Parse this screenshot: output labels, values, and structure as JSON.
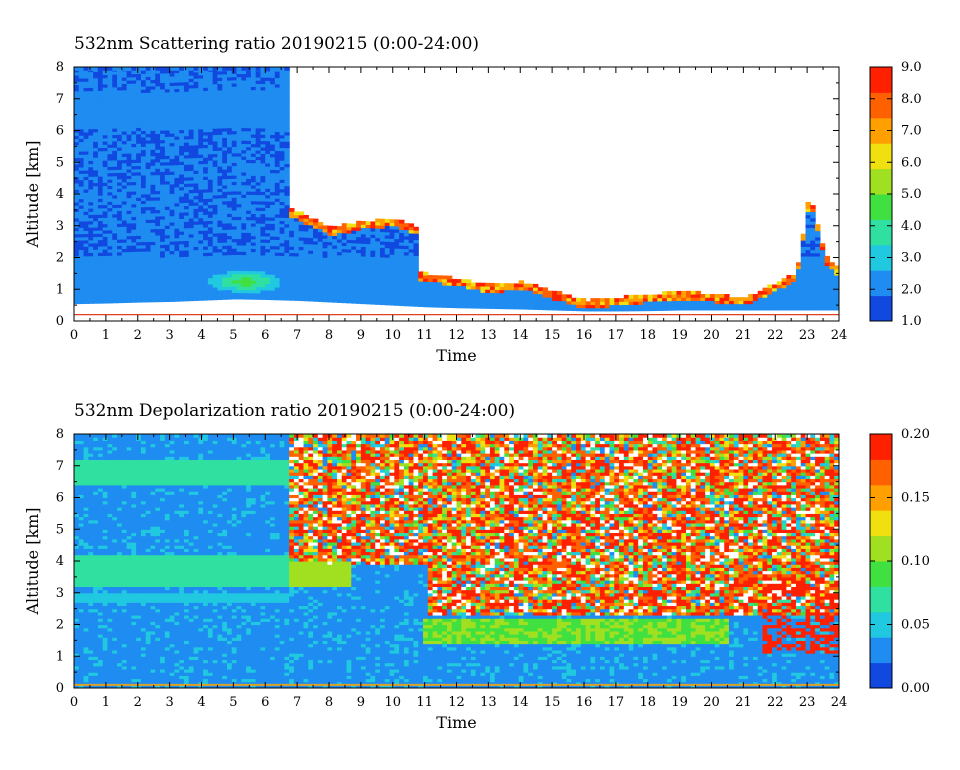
{
  "chart_data": [
    {
      "type": "heatmap",
      "title": "532nm Scattering ratio  20190215 (0:00-24:00)",
      "xlabel": "Time",
      "ylabel": "Altitude [km]",
      "xlim": [
        0,
        24
      ],
      "ylim": [
        0,
        8
      ],
      "x_ticks": [
        "0",
        "1",
        "2",
        "3",
        "4",
        "5",
        "6",
        "7",
        "8",
        "9",
        "10",
        "11",
        "12",
        "13",
        "14",
        "15",
        "16",
        "17",
        "18",
        "19",
        "20",
        "21",
        "22",
        "23",
        "24"
      ],
      "y_ticks": [
        "0",
        "1",
        "2",
        "3",
        "4",
        "5",
        "6",
        "7",
        "8"
      ],
      "colorbar": {
        "range": [
          1.0,
          9.0
        ],
        "ticks": [
          "1.0",
          "2.0",
          "3.0",
          "4.0",
          "5.0",
          "6.0",
          "7.0",
          "8.0",
          "9.0"
        ],
        "colors": [
          "#1048e0",
          "#1e8cf0",
          "#20c8e0",
          "#30e0a0",
          "#40e040",
          "#a0e020",
          "#f0e010",
          "#ffa000",
          "#ff6000",
          "#ff2000"
        ]
      },
      "features": {
        "cloud_base_km": [
          [
            0,
            0.55
          ],
          [
            1,
            0.57
          ],
          [
            2,
            0.6
          ],
          [
            3,
            0.62
          ],
          [
            4,
            0.66
          ],
          [
            5,
            0.7
          ],
          [
            6,
            0.68
          ],
          [
            7,
            0.65
          ],
          [
            8,
            0.6
          ],
          [
            9,
            0.55
          ],
          [
            10,
            0.5
          ],
          [
            11,
            0.45
          ],
          [
            12,
            0.42
          ],
          [
            13,
            0.4
          ],
          [
            14,
            0.38
          ],
          [
            15,
            0.35
          ],
          [
            16,
            0.32
          ],
          [
            17,
            0.32
          ],
          [
            18,
            0.33
          ],
          [
            19,
            0.35
          ],
          [
            20,
            0.35
          ],
          [
            21,
            0.35
          ],
          [
            22,
            0.35
          ],
          [
            23,
            0.35
          ],
          [
            24,
            0.35
          ]
        ],
        "cloud_top_km": [
          [
            0,
            8
          ],
          [
            6.75,
            8
          ],
          [
            6.75,
            3.5
          ],
          [
            8,
            2.9
          ],
          [
            9,
            3.1
          ],
          [
            10,
            3.2
          ],
          [
            10.7,
            2.9
          ],
          [
            10.7,
            1.5
          ],
          [
            12,
            1.3
          ],
          [
            13,
            1.1
          ],
          [
            14,
            1.2
          ],
          [
            15,
            0.9
          ],
          [
            16,
            0.6
          ],
          [
            17,
            0.7
          ],
          [
            18,
            0.8
          ],
          [
            19,
            0.9
          ],
          [
            20,
            0.8
          ],
          [
            21,
            0.7
          ],
          [
            22,
            1.2
          ],
          [
            22.6,
            1.5
          ],
          [
            23,
            4.0
          ],
          [
            23.5,
            2.0
          ],
          [
            24,
            1.5
          ]
        ],
        "aerosol_layer_max": {
          "time": 5.3,
          "altitude_km": 1.2,
          "value": 5.0
        },
        "surface_line_km": 0.2
      }
    },
    {
      "type": "heatmap",
      "title": "532nm Depolarization ratio  20190215 (0:00-24:00)",
      "xlabel": "Time",
      "ylabel": "Altitude [km]",
      "xlim": [
        0,
        24
      ],
      "ylim": [
        0,
        8
      ],
      "x_ticks": [
        "0",
        "1",
        "2",
        "3",
        "4",
        "5",
        "6",
        "7",
        "8",
        "9",
        "10",
        "11",
        "12",
        "13",
        "14",
        "15",
        "16",
        "17",
        "18",
        "19",
        "20",
        "21",
        "22",
        "23",
        "24"
      ],
      "y_ticks": [
        "0",
        "1",
        "2",
        "3",
        "4",
        "5",
        "6",
        "7",
        "8"
      ],
      "colorbar": {
        "range": [
          0.0,
          0.2
        ],
        "ticks": [
          "0.00",
          "0.05",
          "0.10",
          "0.15",
          "0.20"
        ],
        "colors": [
          "#1048e0",
          "#1e8cf0",
          "#20c8e0",
          "#30e0a0",
          "#40e040",
          "#a0e020",
          "#f0e010",
          "#ffa000",
          "#ff6000",
          "#ff2000"
        ]
      },
      "features": {
        "noisy_region": {
          "time": [
            6.75,
            24
          ],
          "altitude_km": [
            1.5,
            8
          ],
          "value": 0.18
        },
        "green_layer": {
          "time": [
            10.9,
            20.5
          ],
          "altitude_km": [
            1.4,
            2.2
          ],
          "value": 0.095
        },
        "green_layer_top": {
          "time": [
            6.75,
            8.6
          ],
          "altitude_km": [
            3.2,
            4.0
          ],
          "value": 0.1
        },
        "clear_sky_bands": [
          {
            "altitude_km": [
              6.3,
              7.1
            ],
            "value": 0.06
          },
          {
            "altitude_km": [
              3.2,
              4.2
            ],
            "value": 0.06
          },
          {
            "altitude_km": [
              2.7,
              3.0
            ],
            "value": 0.05
          }
        ],
        "surface_line_km": 0.1
      }
    }
  ]
}
